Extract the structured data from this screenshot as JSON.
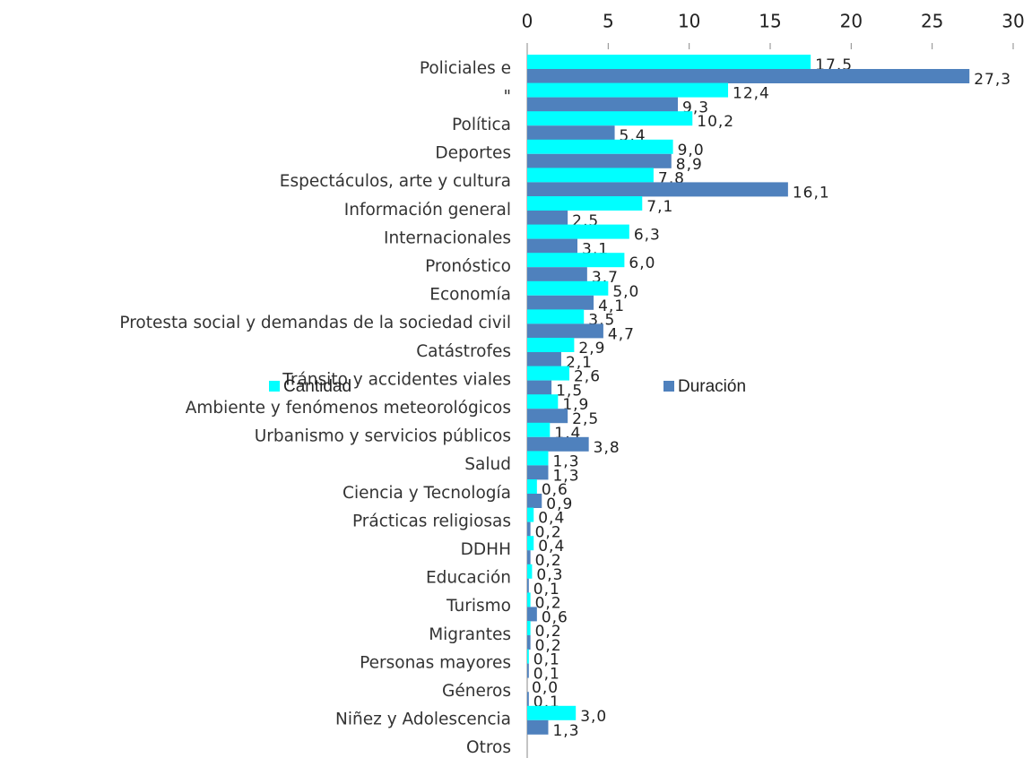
{
  "chart_data": {
    "type": "bar",
    "orientation": "horizontal",
    "categories": [
      "Policiales e",
      "\"",
      "Política",
      "Deportes",
      "Espectáculos, arte y cultura",
      "Información general",
      "Internacionales",
      "Pronóstico",
      "Economía",
      "Protesta social y demandas de la sociedad civil",
      "Catástrofes",
      "Tránsito y accidentes viales",
      "Ambiente y fenómenos meteorológicos",
      "Urbanismo y servicios públicos",
      "Salud",
      "Ciencia y Tecnología",
      "Prácticas religiosas",
      "DDHH",
      "Educación",
      "Turismo",
      "Migrantes",
      "Personas mayores",
      "Géneros",
      "Niñez y Adolescencia",
      "Otros"
    ],
    "series": [
      {
        "name": "Cantidad",
        "color": "#00ffff",
        "values": [
          17.5,
          12.4,
          10.2,
          9.0,
          7.8,
          7.1,
          6.3,
          6.0,
          5.0,
          3.5,
          2.9,
          2.6,
          1.9,
          1.4,
          1.3,
          0.6,
          0.4,
          0.4,
          0.3,
          0.2,
          0.2,
          0.1,
          0.0,
          3.0,
          null
        ],
        "value_labels": [
          "17,5",
          "12,4",
          "10,2",
          "9,0",
          "7,8",
          "7,1",
          "6,3",
          "6,0",
          "5,0",
          "3,5",
          "2,9",
          "2,6",
          "1,9",
          "1,4",
          "1,3",
          "0,6",
          "0,4",
          "0,4",
          "0,3",
          "0,2",
          "0,2",
          "0,1",
          "0,0",
          "3,0",
          null
        ]
      },
      {
        "name": "Duración",
        "color": "#4f81bd",
        "values": [
          27.3,
          9.3,
          5.4,
          8.9,
          16.1,
          2.5,
          3.1,
          3.7,
          4.1,
          4.7,
          2.1,
          1.5,
          2.5,
          3.8,
          1.3,
          0.9,
          0.2,
          0.2,
          0.1,
          0.6,
          0.2,
          0.1,
          0.1,
          1.3,
          null
        ],
        "value_labels": [
          "27,3",
          "9,3",
          "5,4",
          "8,9",
          "16,1",
          "2,5",
          "3,1",
          "3,7",
          "4,1",
          "4,7",
          "2,1",
          "1,5",
          "2,5",
          "3,8",
          "1,3",
          "0,9",
          "0,2",
          "0,2",
          "0,1",
          "0,6",
          "0,2",
          "0,1",
          "0,1",
          "1,3",
          null
        ]
      }
    ],
    "xlim": [
      0,
      30
    ],
    "xticks": [
      0,
      5,
      10,
      15,
      20,
      25,
      30
    ],
    "xaxis_position": "top"
  }
}
